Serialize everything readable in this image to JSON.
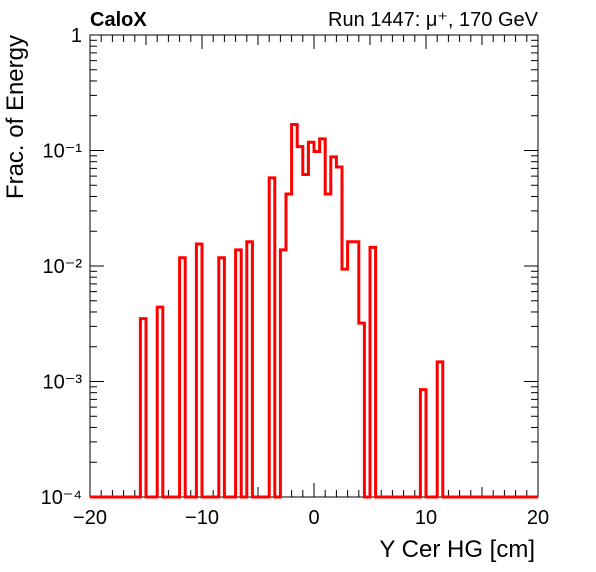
{
  "chart_data": {
    "type": "step histogram",
    "title": "CaloX",
    "subtitle": "Run 1447:   μ⁺, 170 GeV",
    "xlabel": "Y Cer HG [cm]",
    "ylabel": "Frac. of Energy",
    "xlim": [
      -20,
      20
    ],
    "ylim": [
      0.0001,
      1
    ],
    "yscale": "log",
    "x_ticks": [
      "−20",
      "−10",
      "0",
      "10",
      "20"
    ],
    "y_ticks": [
      "10⁻⁴",
      "10⁻³",
      "10⁻²",
      "10⁻¹",
      "1"
    ],
    "series": [
      {
        "color": "#ff0000",
        "bin_width": 0.5,
        "bins": [
          {
            "x0": -15.5,
            "x1": -15.0,
            "y": 0.0035
          },
          {
            "x0": -14.0,
            "x1": -13.5,
            "y": 0.0044
          },
          {
            "x0": -12.0,
            "x1": -11.5,
            "y": 0.0118
          },
          {
            "x0": -10.5,
            "x1": -10.0,
            "y": 0.0155
          },
          {
            "x0": -8.5,
            "x1": -8.0,
            "y": 0.0118
          },
          {
            "x0": -7.0,
            "x1": -6.5,
            "y": 0.0138
          },
          {
            "x0": -6.0,
            "x1": -5.5,
            "y": 0.0162
          },
          {
            "x0": -4.0,
            "x1": -3.5,
            "y": 0.058
          },
          {
            "x0": -3.0,
            "x1": -2.5,
            "y": 0.0138
          },
          {
            "x0": -2.5,
            "x1": -2.0,
            "y": 0.042
          },
          {
            "x0": -2.0,
            "x1": -1.5,
            "y": 0.168
          },
          {
            "x0": -1.5,
            "x1": -1.0,
            "y": 0.108
          },
          {
            "x0": -1.0,
            "x1": -0.5,
            "y": 0.062
          },
          {
            "x0": -0.5,
            "x1": 0.0,
            "y": 0.118
          },
          {
            "x0": 0.0,
            "x1": 0.5,
            "y": 0.098
          },
          {
            "x0": 0.5,
            "x1": 1.0,
            "y": 0.126
          },
          {
            "x0": 1.0,
            "x1": 1.5,
            "y": 0.042
          },
          {
            "x0": 1.5,
            "x1": 2.0,
            "y": 0.088
          },
          {
            "x0": 2.0,
            "x1": 2.5,
            "y": 0.072
          },
          {
            "x0": 2.5,
            "x1": 3.0,
            "y": 0.0094
          },
          {
            "x0": 3.0,
            "x1": 3.5,
            "y": 0.0162
          },
          {
            "x0": 3.5,
            "x1": 4.0,
            "y": 0.0162
          },
          {
            "x0": 4.0,
            "x1": 4.5,
            "y": 0.0032
          },
          {
            "x0": 5.0,
            "x1": 5.5,
            "y": 0.0145
          },
          {
            "x0": 9.5,
            "x1": 10.0,
            "y": 0.00085
          },
          {
            "x0": 11.0,
            "x1": 11.5,
            "y": 0.00148
          }
        ]
      }
    ],
    "grid": false,
    "legend": "none"
  }
}
